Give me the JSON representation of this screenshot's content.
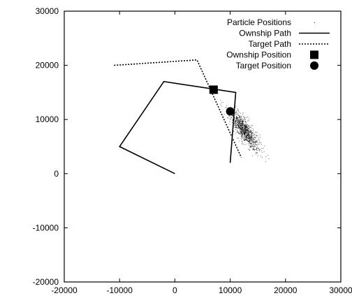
{
  "chart_data": {
    "type": "scatter",
    "xlim": [
      -20000,
      30000
    ],
    "ylim": [
      -20000,
      30000
    ],
    "x_ticks": [
      -20000,
      -10000,
      0,
      10000,
      20000,
      30000
    ],
    "y_ticks": [
      -20000,
      -10000,
      0,
      10000,
      20000,
      30000
    ],
    "x_tick_labels": [
      "-20000",
      "-10000",
      "0",
      "10000",
      "20000",
      "30000"
    ],
    "y_tick_labels": [
      "-20000",
      "-10000",
      "0",
      "10000",
      "20000",
      "30000"
    ],
    "grid": false,
    "legend_position": "top-right",
    "colors": {
      "foreground": "#000000",
      "background": "#ffffff",
      "particles": "#000000"
    },
    "legend": [
      {
        "label": "Particle Positions",
        "style": "dots"
      },
      {
        "label": "Ownship Path",
        "style": "solid-line"
      },
      {
        "label": "Target Path",
        "style": "dotted-line"
      },
      {
        "label": "Ownship Position",
        "style": "square"
      },
      {
        "label": "Target Position",
        "style": "circle"
      }
    ],
    "series": [
      {
        "name": "Ownship Path",
        "kind": "line",
        "style": "solid",
        "x": [
          0,
          -10000,
          -2000,
          11000,
          10000
        ],
        "y": [
          0,
          5000,
          17000,
          15000,
          2000
        ]
      },
      {
        "name": "Target Path",
        "kind": "line",
        "style": "dotted",
        "x": [
          -11000,
          4000,
          12000
        ],
        "y": [
          20000,
          21000,
          3000
        ]
      },
      {
        "name": "Ownship Position",
        "kind": "marker",
        "marker": "square",
        "x": [
          7000
        ],
        "y": [
          15500
        ]
      },
      {
        "name": "Target Position",
        "kind": "marker",
        "marker": "circle",
        "x": [
          10000
        ],
        "y": [
          11500
        ]
      },
      {
        "name": "Particle Positions",
        "kind": "cloud",
        "center": [
          12500,
          8000
        ],
        "direction": [
          0.55,
          -0.835
        ],
        "major_sd": 2200,
        "minor_sd": 650,
        "count": 1000
      }
    ]
  }
}
